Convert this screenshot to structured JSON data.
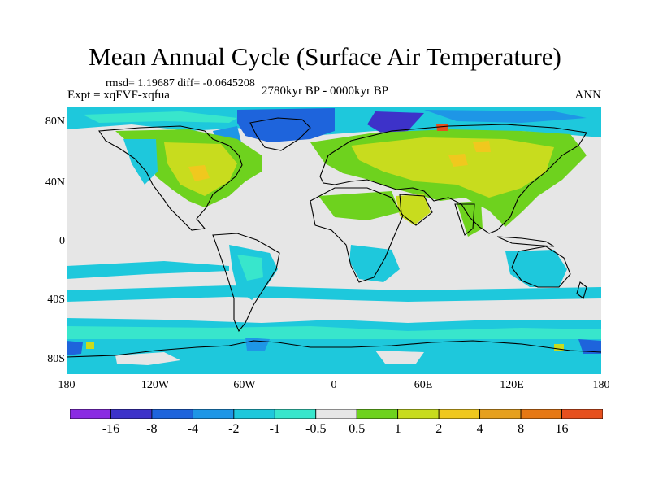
{
  "title": "Mean Annual Cycle (Surface Air Temperature)",
  "stats": "rmsd= 1.19687 diff= -0.0645208",
  "experiment": "Expt = xqFVF-xqfua",
  "period": "2780kyr BP - 0000kyr BP",
  "season": "ANN",
  "map": {
    "lat_range": [
      -90,
      90
    ],
    "lon_range": [
      -180,
      180
    ],
    "y_ticks": [
      "80N",
      "40N",
      "0",
      "40S",
      "80S"
    ],
    "x_ticks": [
      "180",
      "120W",
      "60W",
      "0",
      "60E",
      "120E",
      "180"
    ]
  },
  "colorbar": {
    "colors": [
      "#8a2be2",
      "#3d32c9",
      "#1e64dc",
      "#1e96e6",
      "#1ec8dc",
      "#38e6cc",
      "#e6e6e6",
      "#6ed21e",
      "#c8dc1e",
      "#f0c81e",
      "#e6a01e",
      "#e67814",
      "#e6501e"
    ],
    "labels": [
      "-16",
      "-8",
      "-4",
      "-2",
      "-1",
      "-0.5",
      "0.5",
      "1",
      "2",
      "4",
      "8",
      "16"
    ]
  }
}
